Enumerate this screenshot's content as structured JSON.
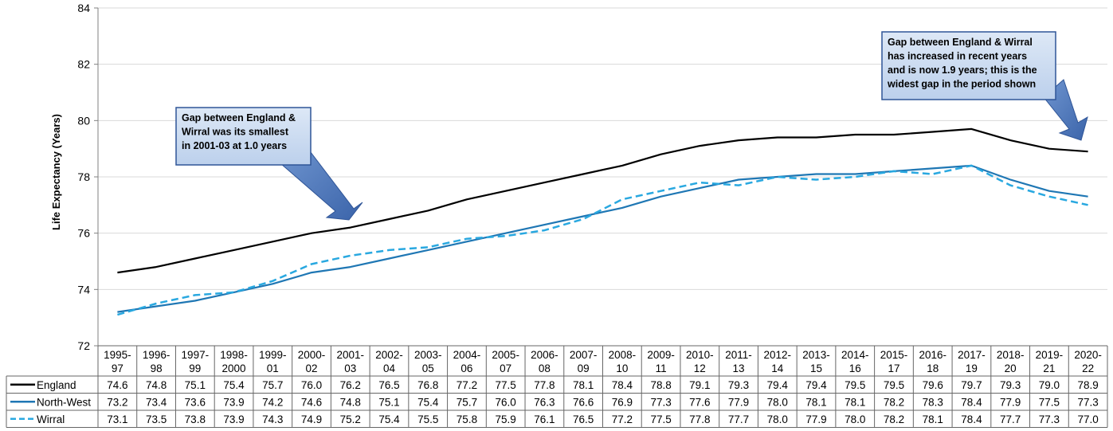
{
  "chart_data": {
    "type": "line",
    "ylabel": "Life Expectancy (Years)",
    "ylim": [
      72,
      84
    ],
    "yticks": [
      72,
      74,
      76,
      78,
      80,
      82,
      84
    ],
    "grid": true,
    "legend": "data-table-left",
    "categories": [
      [
        "1995-",
        "97"
      ],
      [
        "1996-",
        "98"
      ],
      [
        "1997-",
        "99"
      ],
      [
        "1998-",
        "2000"
      ],
      [
        "1999-",
        "01"
      ],
      [
        "2000-",
        "02"
      ],
      [
        "2001-",
        "03"
      ],
      [
        "2002-",
        "04"
      ],
      [
        "2003-",
        "05"
      ],
      [
        "2004-",
        "06"
      ],
      [
        "2005-",
        "07"
      ],
      [
        "2006-",
        "08"
      ],
      [
        "2007-",
        "09"
      ],
      [
        "2008-",
        "10"
      ],
      [
        "2009-",
        "11"
      ],
      [
        "2010-",
        "12"
      ],
      [
        "2011-",
        "13"
      ],
      [
        "2012-",
        "14"
      ],
      [
        "2013-",
        "15"
      ],
      [
        "2014-",
        "16"
      ],
      [
        "2015-",
        "17"
      ],
      [
        "2016-",
        "18"
      ],
      [
        "2017-",
        "19"
      ],
      [
        "2018-",
        "20"
      ],
      [
        "2019-",
        "21"
      ],
      [
        "2020-",
        "22"
      ]
    ],
    "series": [
      {
        "name": "England",
        "color": "#000000",
        "style": "solid",
        "values": [
          74.6,
          74.8,
          75.1,
          75.4,
          75.7,
          76.0,
          76.2,
          76.5,
          76.8,
          77.2,
          77.5,
          77.8,
          78.1,
          78.4,
          78.8,
          79.1,
          79.3,
          79.4,
          79.4,
          79.5,
          79.5,
          79.6,
          79.7,
          79.3,
          79.0,
          78.9
        ]
      },
      {
        "name": "North-West",
        "color": "#1f77b4",
        "style": "solid",
        "values": [
          73.2,
          73.4,
          73.6,
          73.9,
          74.2,
          74.6,
          74.8,
          75.1,
          75.4,
          75.7,
          76.0,
          76.3,
          76.6,
          76.9,
          77.3,
          77.6,
          77.9,
          78.0,
          78.1,
          78.1,
          78.2,
          78.3,
          78.4,
          77.9,
          77.5,
          77.3
        ]
      },
      {
        "name": "Wirral",
        "color": "#29a8e0",
        "style": "dashed",
        "values": [
          73.1,
          73.5,
          73.8,
          73.9,
          74.3,
          74.9,
          75.2,
          75.4,
          75.5,
          75.8,
          75.9,
          76.1,
          76.5,
          77.2,
          77.5,
          77.8,
          77.7,
          78.0,
          77.9,
          78.0,
          78.2,
          78.1,
          78.4,
          77.7,
          77.3,
          77.0
        ]
      }
    ],
    "annotations": [
      {
        "lines": [
          "Gap between England &",
          "Wirral was its smallest",
          "in 2001-03 at 1.0 years"
        ]
      },
      {
        "lines": [
          "Gap between England & Wirral",
          "has increased in recent years",
          "and is now 1.9 years; this is the",
          "widest gap in the period shown"
        ]
      }
    ]
  }
}
